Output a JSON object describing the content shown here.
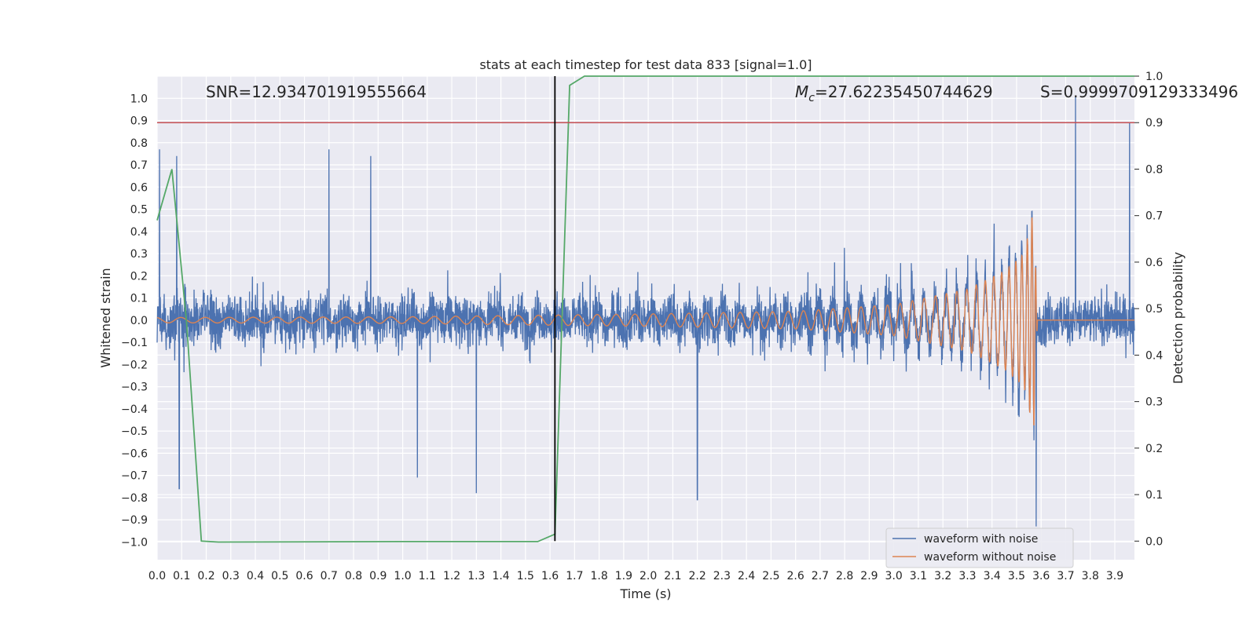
{
  "chart_data": {
    "type": "line",
    "title": "stats at each timestep for test data 833 [signal=1.0]",
    "xlabel": "Time (s)",
    "ylabel_left": "Whitened strain",
    "ylabel_right": "Detection probability",
    "xlim": [
      0.0,
      3.98
    ],
    "ylim_left": [
      -1.08,
      1.1
    ],
    "ylim_right": [
      -0.04,
      1.0
    ],
    "x_ticks": [
      0.0,
      0.1,
      0.2,
      0.3,
      0.4,
      0.5,
      0.6,
      0.7,
      0.8,
      0.9,
      1.0,
      1.1,
      1.2,
      1.3,
      1.4,
      1.5,
      1.6,
      1.7,
      1.8,
      1.9,
      2.0,
      2.1,
      2.2,
      2.3,
      2.4,
      2.5,
      2.6,
      2.7,
      2.8,
      2.9,
      3.0,
      3.1,
      3.2,
      3.3,
      3.4,
      3.5,
      3.6,
      3.7,
      3.8,
      3.9
    ],
    "x_tick_labels": [
      "0.0",
      "0.1",
      "0.2",
      "0.3",
      "0.4",
      "0.5",
      "0.6",
      "0.7",
      "0.8",
      "0.9",
      "1.0",
      "1.1",
      "1.2",
      "1.3",
      "1.4",
      "1.5",
      "1.6",
      "1.7",
      "1.8",
      "1.9",
      "2.0",
      "2.1",
      "2.2",
      "2.3",
      "2.4",
      "2.5",
      "2.6",
      "2.7",
      "2.8",
      "2.9",
      "3.0",
      "3.1",
      "3.2",
      "3.3",
      "3.4",
      "3.5",
      "3.6",
      "3.7",
      "3.8",
      "3.9"
    ],
    "y_left_ticks": [
      -1.0,
      -0.9,
      -0.8,
      -0.7,
      -0.6,
      -0.5,
      -0.4,
      -0.3,
      -0.2,
      -0.1,
      0.0,
      0.1,
      0.2,
      0.3,
      0.4,
      0.5,
      0.6,
      0.7,
      0.8,
      0.9,
      1.0
    ],
    "y_left_tick_labels": [
      "−1.0",
      "−0.9",
      "−0.8",
      "−0.7",
      "−0.6",
      "−0.5",
      "−0.4",
      "−0.3",
      "−0.2",
      "−0.1",
      "0.0",
      "0.1",
      "0.2",
      "0.3",
      "0.4",
      "0.5",
      "0.6",
      "0.7",
      "0.8",
      "0.9",
      "1.0"
    ],
    "y_right_ticks": [
      0.0,
      0.1,
      0.2,
      0.3,
      0.4,
      0.5,
      0.6,
      0.7,
      0.8,
      0.9,
      1.0
    ],
    "y_right_tick_labels": [
      "0.0",
      "0.1",
      "0.2",
      "0.3",
      "0.4",
      "0.5",
      "0.6",
      "0.7",
      "0.8",
      "0.9",
      "1.0"
    ],
    "grid": true,
    "background": "#eaeaf2",
    "annotations": {
      "snr": "SNR=12.934701919555664",
      "mc_symbol": "M",
      "mc_sub": "c",
      "mc_value": "=27.62235450744629",
      "s": "S=0.9999709129333496"
    },
    "series": [
      {
        "name": "waveform with noise",
        "axis": "left",
        "color": "#4c72b0",
        "style": "dense noise trace, approx. range ±0.4 with spikes",
        "spikes": [
          {
            "x": 0.01,
            "y": 0.77
          },
          {
            "x": 0.08,
            "y": 0.74
          },
          {
            "x": 0.09,
            "y": -0.76
          },
          {
            "x": 0.7,
            "y": 0.77
          },
          {
            "x": 0.87,
            "y": 0.74
          },
          {
            "x": 1.06,
            "y": -0.71
          },
          {
            "x": 1.3,
            "y": -0.78
          },
          {
            "x": 2.2,
            "y": -0.81
          },
          {
            "x": 3.58,
            "y": -0.93
          },
          {
            "x": 3.74,
            "y": 1.01
          },
          {
            "x": 3.96,
            "y": 0.89
          }
        ]
      },
      {
        "name": "waveform without noise",
        "axis": "left",
        "color": "#dd8452",
        "style": "chirp",
        "amplitude_points": [
          {
            "x": 0.0,
            "y": 0.012
          },
          {
            "x": 1.0,
            "y": 0.015
          },
          {
            "x": 2.0,
            "y": 0.028
          },
          {
            "x": 2.6,
            "y": 0.04
          },
          {
            "x": 3.0,
            "y": 0.07
          },
          {
            "x": 3.3,
            "y": 0.14
          },
          {
            "x": 3.45,
            "y": 0.22
          },
          {
            "x": 3.53,
            "y": 0.3
          },
          {
            "x": 3.57,
            "y": 0.5
          },
          {
            "x": 3.585,
            "y": 0.0
          }
        ],
        "end_x": 3.585
      },
      {
        "name": "detection probability",
        "axis": "right",
        "color": "#55a868",
        "points": [
          {
            "x": 0.0,
            "y": 0.69
          },
          {
            "x": 0.06,
            "y": 0.8
          },
          {
            "x": 0.12,
            "y": 0.47
          },
          {
            "x": 0.18,
            "y": 0.0
          },
          {
            "x": 0.25,
            "y": -0.002
          },
          {
            "x": 1.0,
            "y": -0.001
          },
          {
            "x": 1.55,
            "y": -0.001
          },
          {
            "x": 1.62,
            "y": 0.015
          },
          {
            "x": 1.68,
            "y": 0.98
          },
          {
            "x": 1.74,
            "y": 1.0
          },
          {
            "x": 3.98,
            "y": 1.0
          }
        ]
      }
    ],
    "hlines": [
      {
        "axis": "right",
        "y": 0.9,
        "color": "#c44e52"
      }
    ],
    "vlines": [
      {
        "x": 1.62,
        "y_from": 0.0,
        "y_to": 1.0,
        "axis": "right",
        "color": "#000000"
      }
    ],
    "legend": {
      "placement": "lower-right",
      "entries": [
        {
          "label": "waveform with noise",
          "color": "#4c72b0"
        },
        {
          "label": "waveform without noise",
          "color": "#dd8452"
        }
      ]
    }
  }
}
